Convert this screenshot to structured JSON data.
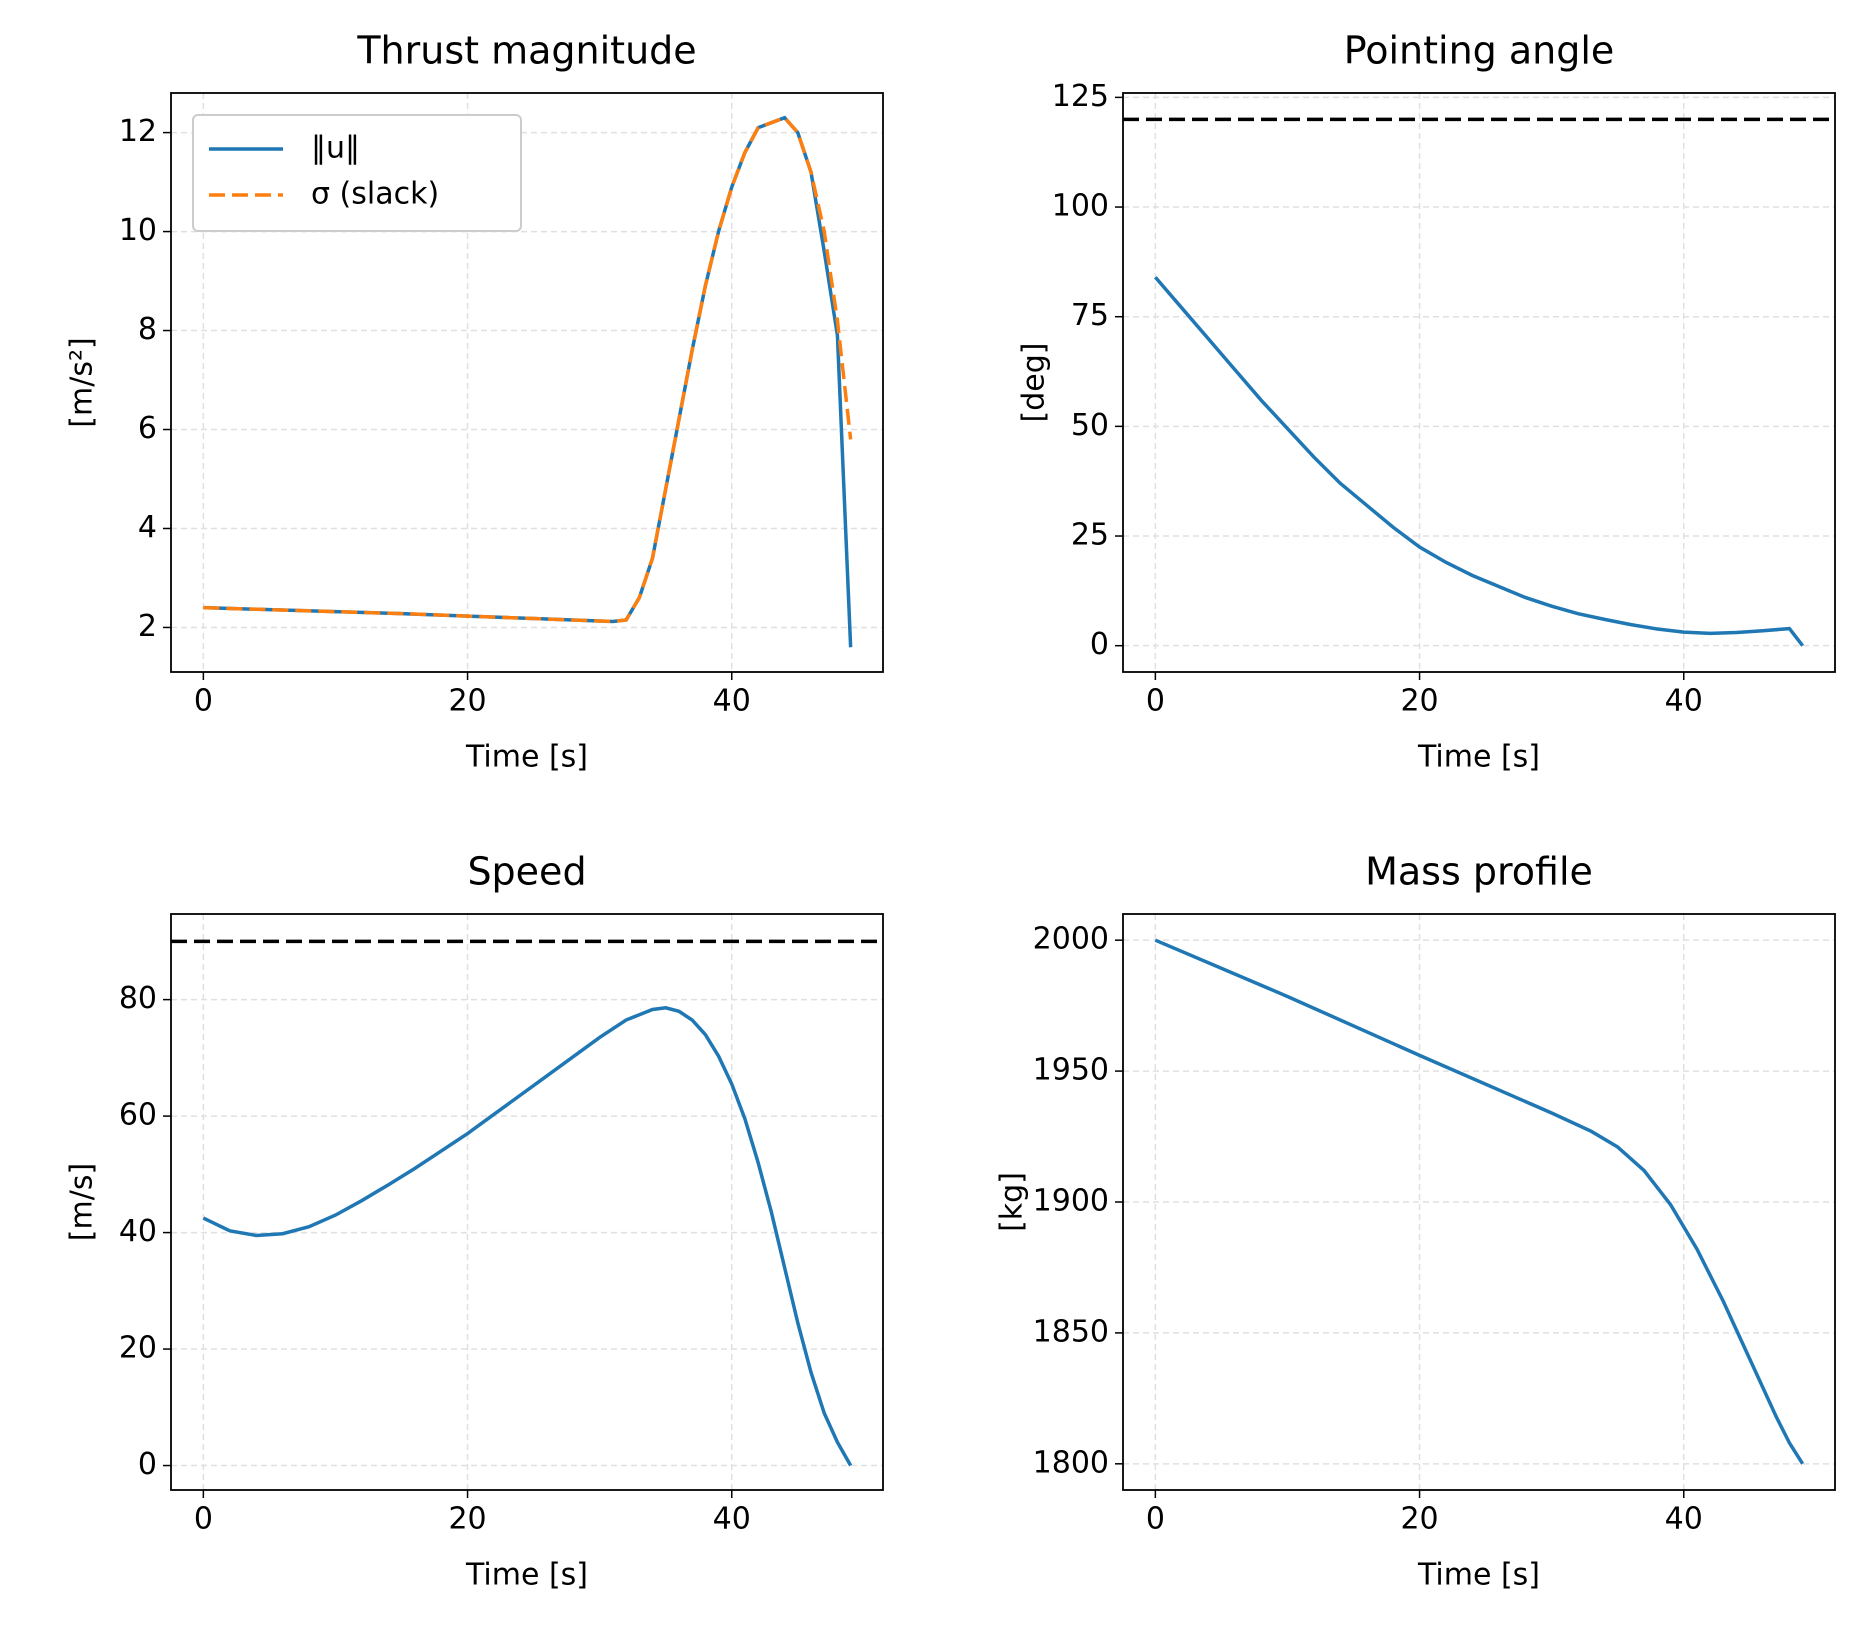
{
  "chart_data": [
    {
      "type": "line",
      "title": "Thrust magnitude",
      "xlabel": "Time [s]",
      "ylabel": "[m/s²]",
      "x": [
        0,
        5,
        10,
        15,
        20,
        25,
        30,
        31,
        32,
        33,
        34,
        35,
        36,
        37,
        38,
        39,
        40,
        41,
        42,
        43,
        44,
        45,
        46,
        47,
        48,
        49
      ],
      "series": [
        {
          "name": "‖u‖",
          "color": "#1f77b4",
          "linestyle": "solid",
          "values": [
            2.4,
            2.36,
            2.32,
            2.28,
            2.23,
            2.18,
            2.13,
            2.12,
            2.15,
            2.6,
            3.4,
            4.8,
            6.2,
            7.6,
            8.9,
            10.0,
            10.9,
            11.6,
            12.1,
            12.2,
            12.3,
            12.0,
            11.2,
            9.6,
            7.9,
            1.6
          ]
        },
        {
          "name": "σ (slack)",
          "color": "#ff7f0e",
          "linestyle": "dashed",
          "values": [
            2.4,
            2.36,
            2.32,
            2.28,
            2.23,
            2.18,
            2.13,
            2.12,
            2.15,
            2.6,
            3.4,
            4.8,
            6.2,
            7.6,
            8.9,
            10.0,
            10.9,
            11.6,
            12.1,
            12.2,
            12.3,
            12.0,
            11.2,
            10.0,
            8.2,
            5.8
          ]
        }
      ],
      "xlim": [
        -2.45,
        51.45
      ],
      "ylim": [
        1.1,
        12.8
      ],
      "xticks": [
        0,
        20,
        40
      ],
      "yticks": [
        2,
        4,
        6,
        8,
        10,
        12
      ],
      "grid": true,
      "legend": "upper left"
    },
    {
      "type": "line",
      "title": "Pointing angle",
      "xlabel": "Time [s]",
      "ylabel": "[deg]",
      "x": [
        0,
        2,
        4,
        6,
        8,
        10,
        12,
        14,
        16,
        18,
        20,
        22,
        24,
        26,
        28,
        30,
        32,
        34,
        36,
        38,
        40,
        42,
        44,
        46,
        48,
        49
      ],
      "series": [
        {
          "color": "#1f77b4",
          "linestyle": "solid",
          "values": [
            84,
            77,
            70,
            63,
            56,
            49.5,
            43,
            37,
            32,
            27,
            22.5,
            19,
            16,
            13.5,
            11,
            9,
            7.3,
            6,
            4.8,
            3.8,
            3.1,
            2.8,
            3,
            3.4,
            3.9,
            0
          ]
        }
      ],
      "hlines": [
        {
          "value": 120,
          "color": "#000000",
          "linestyle": "dashed"
        }
      ],
      "xlim": [
        -2.45,
        51.45
      ],
      "ylim": [
        -6,
        126
      ],
      "xticks": [
        0,
        20,
        40
      ],
      "yticks": [
        0,
        25,
        50,
        75,
        100,
        125
      ],
      "grid": true
    },
    {
      "type": "line",
      "title": "Speed",
      "xlabel": "Time [s]",
      "ylabel": "[m/s]",
      "x": [
        0,
        2,
        4,
        6,
        8,
        10,
        12,
        14,
        16,
        18,
        20,
        22,
        24,
        26,
        28,
        30,
        32,
        34,
        35,
        36,
        37,
        38,
        39,
        40,
        41,
        42,
        43,
        44,
        45,
        46,
        47,
        48,
        49
      ],
      "series": [
        {
          "color": "#1f77b4",
          "linestyle": "solid",
          "values": [
            42.5,
            40.3,
            39.5,
            39.8,
            41,
            43,
            45.5,
            48.2,
            51,
            54,
            57,
            60.3,
            63.6,
            66.9,
            70.2,
            73.5,
            76.5,
            78.3,
            78.6,
            78,
            76.5,
            74,
            70.3,
            65.5,
            59.5,
            52,
            43.5,
            34,
            24.5,
            16,
            9,
            4,
            0
          ]
        }
      ],
      "hlines": [
        {
          "value": 90,
          "color": "#000000",
          "linestyle": "dashed"
        }
      ],
      "xlim": [
        -2.45,
        51.45
      ],
      "ylim": [
        -4.2,
        94.7
      ],
      "xticks": [
        0,
        20,
        40
      ],
      "yticks": [
        0,
        20,
        40,
        60,
        80
      ],
      "grid": true
    },
    {
      "type": "line",
      "title": "Mass profile",
      "xlabel": "Time [s]",
      "ylabel": "[kg]",
      "x": [
        0,
        10,
        20,
        30,
        33,
        35,
        37,
        39,
        41,
        43,
        45,
        47,
        48,
        49
      ],
      "series": [
        {
          "color": "#1f77b4",
          "linestyle": "solid",
          "values": [
            2000,
            1978.5,
            1956,
            1934,
            1927,
            1921,
            1912,
            1899,
            1882,
            1862,
            1840,
            1818,
            1808,
            1800
          ]
        }
      ],
      "xlim": [
        -2.45,
        51.45
      ],
      "ylim": [
        1790,
        2010
      ],
      "xticks": [
        0,
        20,
        40
      ],
      "yticks": [
        1800,
        1850,
        1900,
        1950,
        2000
      ],
      "grid": true
    }
  ]
}
